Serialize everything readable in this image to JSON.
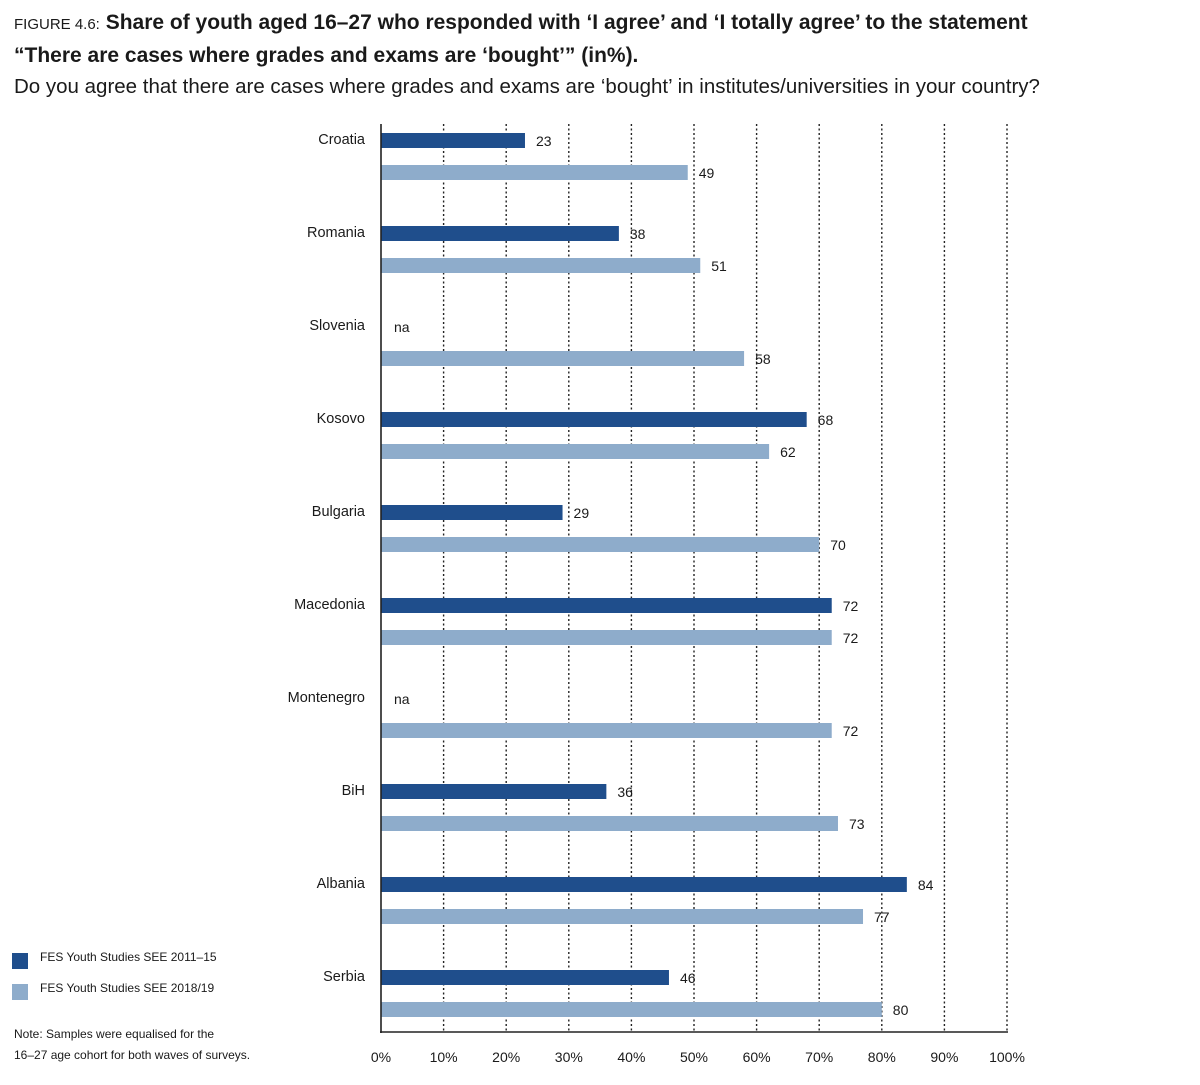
{
  "header": {
    "figure_label": "FIGURE 4.6:",
    "title_line1": "Share of youth aged 16–27 who responded with ‘I agree’ and ‘I totally agree’ to the statement",
    "title_line2": "“There are cases where grades and exams are ‘bought’” (in%).",
    "subtitle": "Do you agree that there are cases where grades and exams are ‘bought’ in institutes/universities in your country?"
  },
  "chart_data": {
    "type": "bar",
    "orientation": "horizontal",
    "categories": [
      "Croatia",
      "Romania",
      "Slovenia",
      "Kosovo",
      "Bulgaria",
      "Macedonia",
      "Montenegro",
      "BiH",
      "Albania",
      "Serbia"
    ],
    "series": [
      {
        "name": "FES Youth Studies SEE 2011–15",
        "color": "#1f4e8c",
        "values": [
          23,
          38,
          null,
          68,
          29,
          72,
          null,
          36,
          84,
          46
        ]
      },
      {
        "name": "FES Youth Studies SEE 2018/19",
        "color": "#8eaccb",
        "values": [
          49,
          51,
          58,
          62,
          70,
          72,
          72,
          73,
          77,
          80
        ]
      }
    ],
    "missing_label": "na",
    "xlim": [
      0,
      100
    ],
    "x_ticks": [
      0,
      10,
      20,
      30,
      40,
      50,
      60,
      70,
      80,
      90,
      100
    ],
    "x_tick_labels": [
      "0%",
      "10%",
      "20%",
      "30%",
      "40%",
      "50%",
      "60%",
      "70%",
      "80%",
      "90%",
      "100%"
    ],
    "grid": "vertical dotted",
    "legend_position": "bottom-left"
  },
  "note": {
    "line1": "Note: Samples were equalised for the",
    "line2": "16–27 age cohort for both waves of surveys."
  }
}
